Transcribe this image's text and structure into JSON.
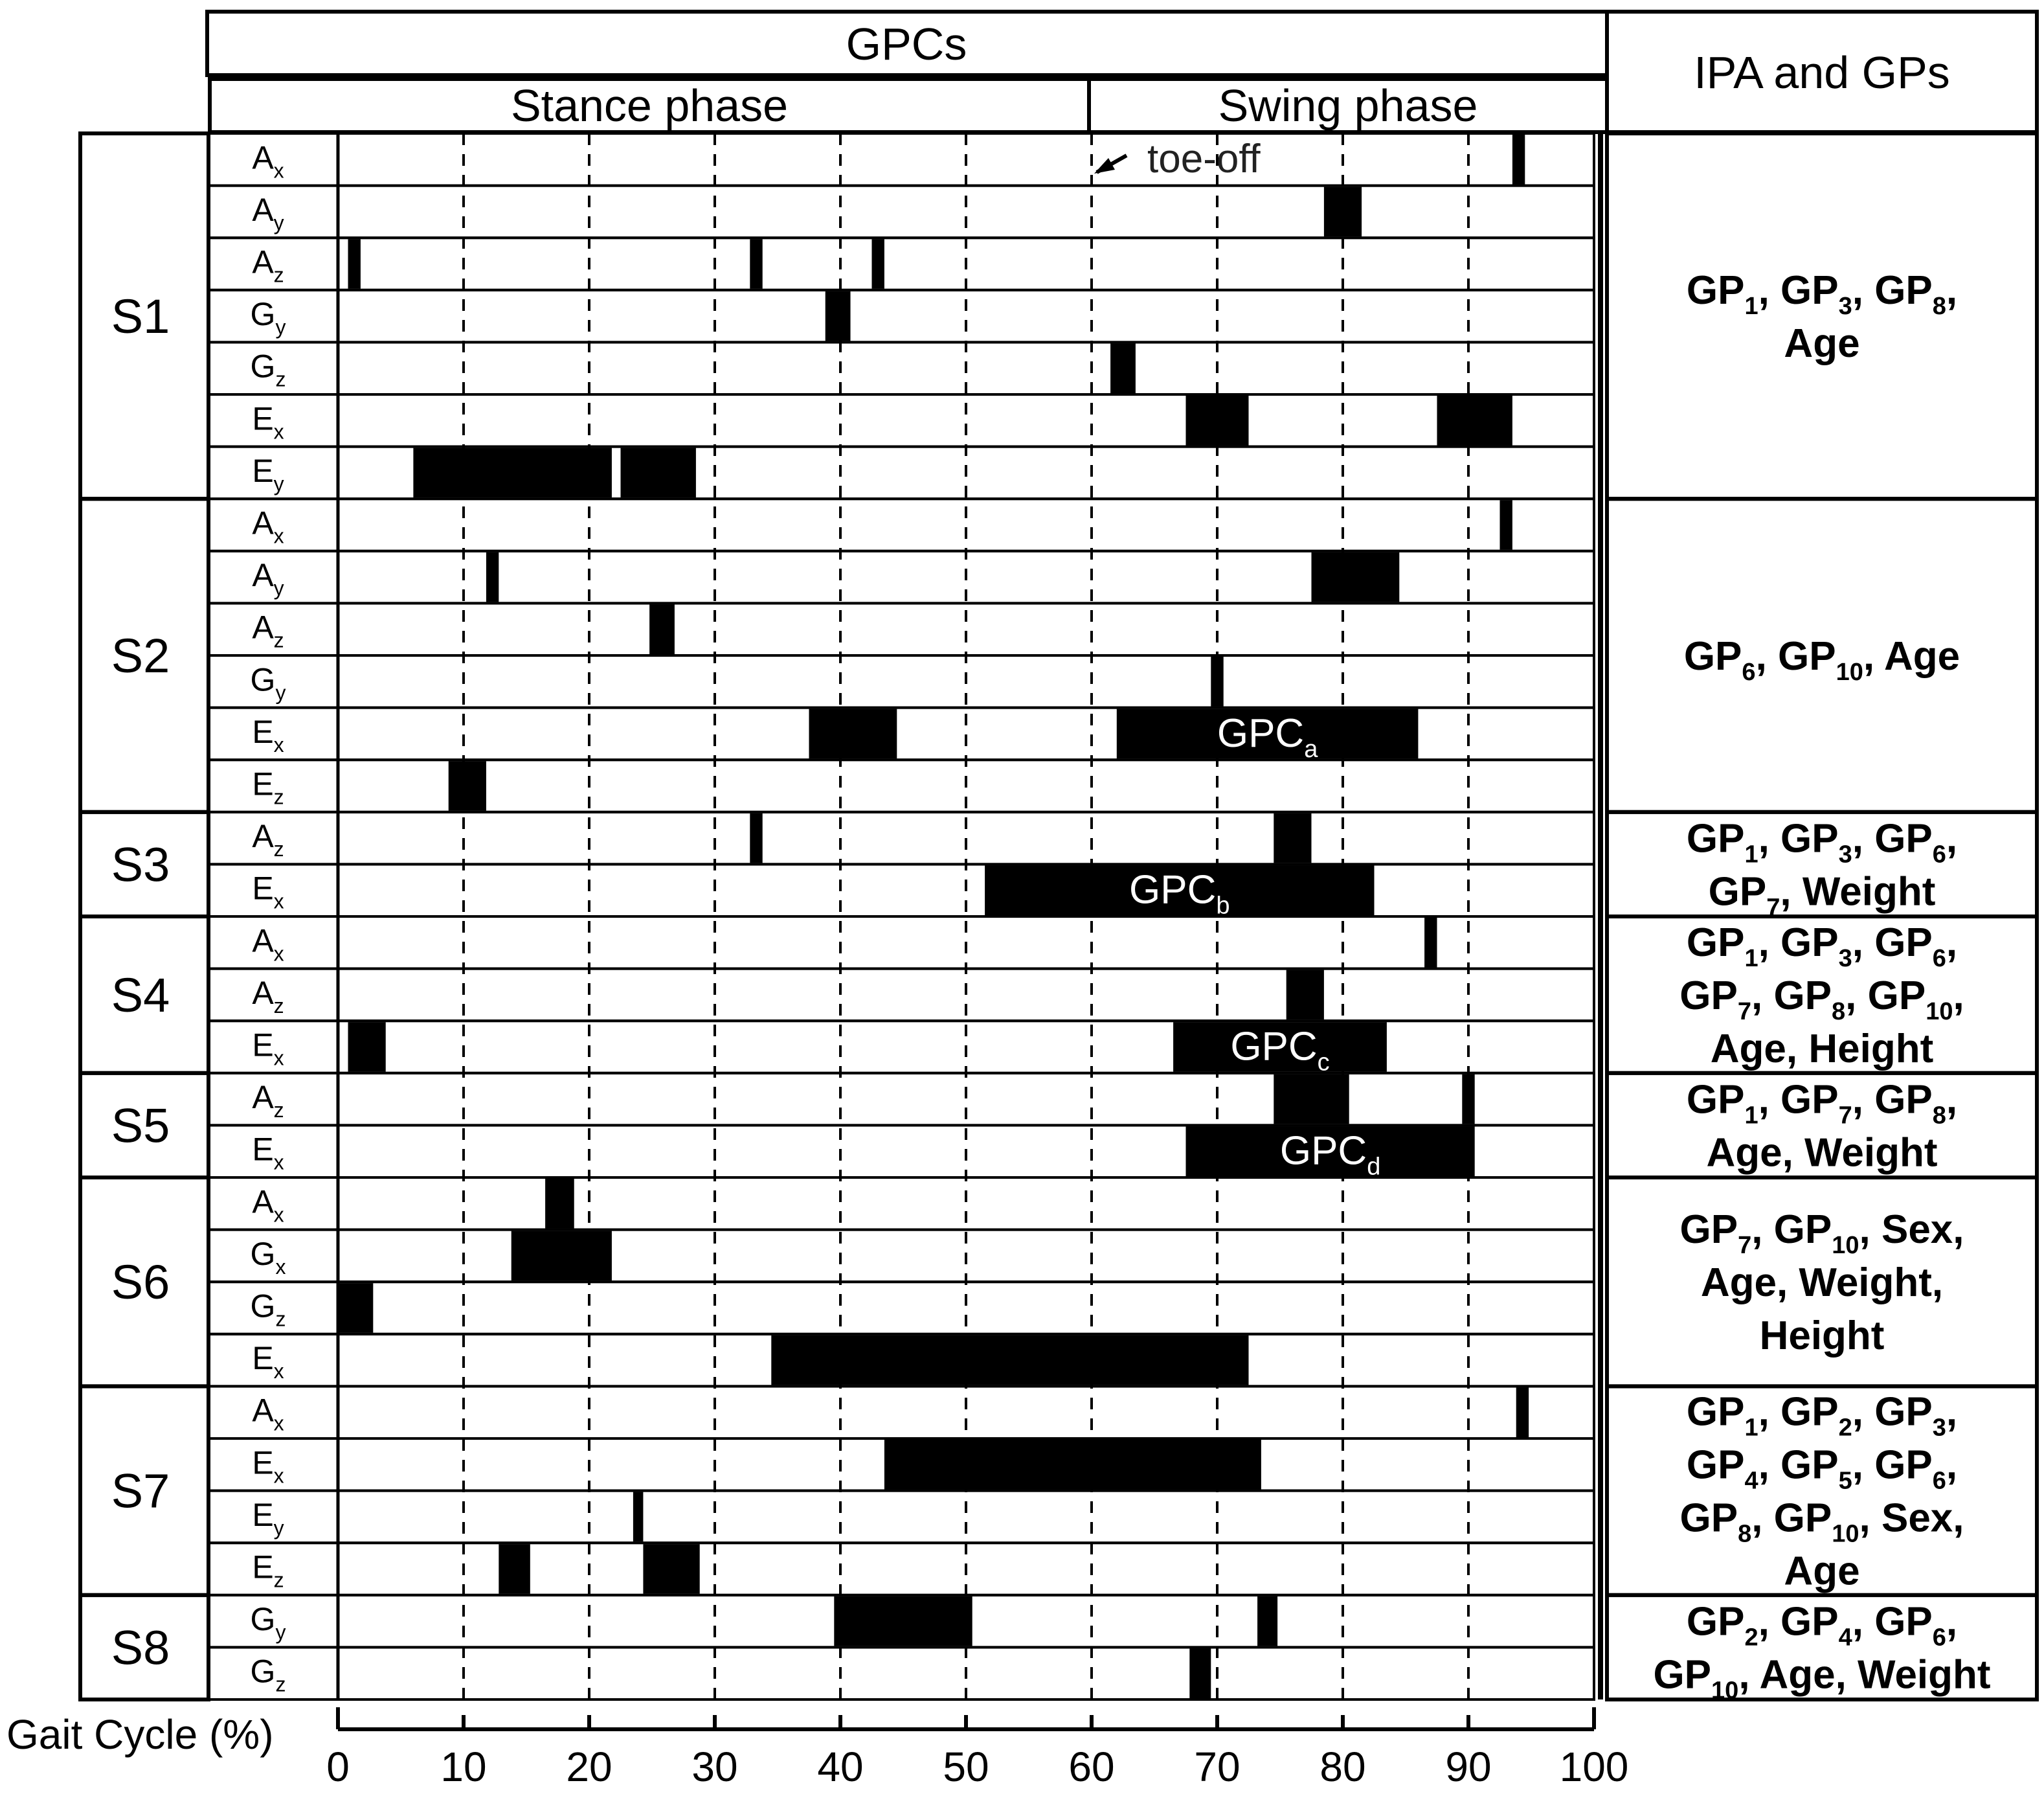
{
  "header": {
    "gpcs": "GPCs",
    "stance_phase": "Stance phase",
    "swing_phase": "Swing phase",
    "ipa_gps": "IPA and GPs"
  },
  "annotation": {
    "toe_off": "toe-off",
    "toe_off_x": 60
  },
  "axis": {
    "label": "Gait Cycle (%)",
    "ticks": [
      0,
      10,
      20,
      30,
      40,
      50,
      60,
      70,
      80,
      90,
      100
    ],
    "range": [
      0,
      100
    ],
    "gridlines": [
      10,
      20,
      30,
      40,
      50,
      60,
      70,
      80,
      90
    ]
  },
  "chart_data": {
    "type": "timeline",
    "xlabel": "Gait Cycle (%)",
    "xlim": [
      0,
      100
    ],
    "phases": [
      {
        "label": "Stance phase",
        "range": [
          0,
          60
        ]
      },
      {
        "label": "Swing phase",
        "range": [
          60,
          100
        ]
      }
    ],
    "subjects": [
      {
        "label": "S1",
        "ipa_gps": [
          "GP_1, GP_3, GP_8,",
          "Age"
        ],
        "rows": [
          {
            "base": "A",
            "sub": "x",
            "segments": [
              [
                93.5,
                94.5
              ]
            ]
          },
          {
            "base": "A",
            "sub": "y",
            "segments": [
              [
                78.5,
                81.5
              ]
            ]
          },
          {
            "base": "A",
            "sub": "z",
            "segments": [
              [
                0.8,
                1.8
              ],
              [
                32.8,
                33.8
              ],
              [
                42.5,
                43.5
              ]
            ]
          },
          {
            "base": "G",
            "sub": "y",
            "segments": [
              [
                38.8,
                40.8
              ]
            ]
          },
          {
            "base": "G",
            "sub": "z",
            "segments": [
              [
                61.5,
                63.5
              ]
            ]
          },
          {
            "base": "E",
            "sub": "x",
            "segments": [
              [
                67.5,
                72.5
              ],
              [
                87.5,
                93.5
              ]
            ]
          },
          {
            "base": "E",
            "sub": "y",
            "segments": [
              [
                6,
                21.8
              ],
              [
                22.5,
                28.5
              ]
            ]
          }
        ]
      },
      {
        "label": "S2",
        "ipa_gps": [
          "GP_6, GP_10, Age"
        ],
        "rows": [
          {
            "base": "A",
            "sub": "x",
            "segments": [
              [
                92.5,
                93.5
              ]
            ]
          },
          {
            "base": "A",
            "sub": "y",
            "segments": [
              [
                11.8,
                12.8
              ],
              [
                77.5,
                84.5
              ]
            ]
          },
          {
            "base": "A",
            "sub": "z",
            "segments": [
              [
                24.8,
                26.8
              ]
            ]
          },
          {
            "base": "G",
            "sub": "y",
            "segments": [
              [
                69.5,
                70.5
              ]
            ]
          },
          {
            "base": "E",
            "sub": "x",
            "segments": [
              [
                37.5,
                44.5
              ],
              [
                62,
                86
              ]
            ],
            "label": "GPC_a"
          },
          {
            "base": "E",
            "sub": "z",
            "segments": [
              [
                8.8,
                11.8
              ]
            ]
          }
        ]
      },
      {
        "label": "S3",
        "ipa_gps": [
          "GP_1, GP_3, GP_6,",
          "GP_7, Weight"
        ],
        "rows": [
          {
            "base": "A",
            "sub": "z",
            "segments": [
              [
                32.8,
                33.8
              ],
              [
                74.5,
                77.5
              ]
            ]
          },
          {
            "base": "E",
            "sub": "x",
            "segments": [
              [
                51.5,
                82.5
              ]
            ],
            "label": "GPC_b"
          }
        ]
      },
      {
        "label": "S4",
        "ipa_gps": [
          "GP_1, GP_3, GP_6,",
          "GP_7, GP_8, GP_10,",
          "Age, Height"
        ],
        "rows": [
          {
            "base": "A",
            "sub": "x",
            "segments": [
              [
                86.5,
                87.5
              ]
            ]
          },
          {
            "base": "A",
            "sub": "z",
            "segments": [
              [
                75.5,
                78.5
              ]
            ]
          },
          {
            "base": "E",
            "sub": "x",
            "segments": [
              [
                0.8,
                3.8
              ],
              [
                66.5,
                83.5
              ]
            ],
            "label": "GPC_c"
          }
        ]
      },
      {
        "label": "S5",
        "ipa_gps": [
          "GP_1, GP_7, GP_8,",
          "Age, Weight"
        ],
        "rows": [
          {
            "base": "A",
            "sub": "z",
            "segments": [
              [
                74.5,
                80.5
              ],
              [
                89.5,
                90.5
              ]
            ]
          },
          {
            "base": "E",
            "sub": "x",
            "segments": [
              [
                67.5,
                90.5
              ]
            ],
            "label": "GPC_d"
          }
        ]
      },
      {
        "label": "S6",
        "ipa_gps": [
          "GP_7, GP_10, Sex,",
          "Age, Weight,",
          "Height"
        ],
        "rows": [
          {
            "base": "A",
            "sub": "x",
            "segments": [
              [
                16.5,
                18.8
              ]
            ]
          },
          {
            "base": "G",
            "sub": "x",
            "segments": [
              [
                13.8,
                21.8
              ]
            ]
          },
          {
            "base": "G",
            "sub": "z",
            "segments": [
              [
                0,
                2.8
              ]
            ]
          },
          {
            "base": "E",
            "sub": "x",
            "segments": [
              [
                34.5,
                72.5
              ]
            ]
          }
        ]
      },
      {
        "label": "S7",
        "ipa_gps": [
          "GP_1, GP_2, GP_3,",
          "GP_4, GP_5, GP_6,",
          "GP_8, GP_10, Sex,",
          "Age"
        ],
        "rows": [
          {
            "base": "A",
            "sub": "x",
            "segments": [
              [
                93.8,
                94.8
              ]
            ]
          },
          {
            "base": "E",
            "sub": "x",
            "segments": [
              [
                43.5,
                73.5
              ]
            ]
          },
          {
            "base": "E",
            "sub": "y",
            "segments": [
              [
                23.5,
                24.3
              ]
            ]
          },
          {
            "base": "E",
            "sub": "z",
            "segments": [
              [
                12.8,
                15.3
              ],
              [
                24.3,
                28.8
              ]
            ]
          }
        ]
      },
      {
        "label": "S8",
        "ipa_gps": [
          "GP_2, GP_4, GP_6,",
          "GP_10, Age, Weight"
        ],
        "rows": [
          {
            "base": "G",
            "sub": "y",
            "segments": [
              [
                39.5,
                50.5
              ],
              [
                73.2,
                74.8
              ]
            ]
          },
          {
            "base": "G",
            "sub": "z",
            "segments": [
              [
                67.8,
                69.5
              ]
            ]
          }
        ]
      }
    ]
  }
}
